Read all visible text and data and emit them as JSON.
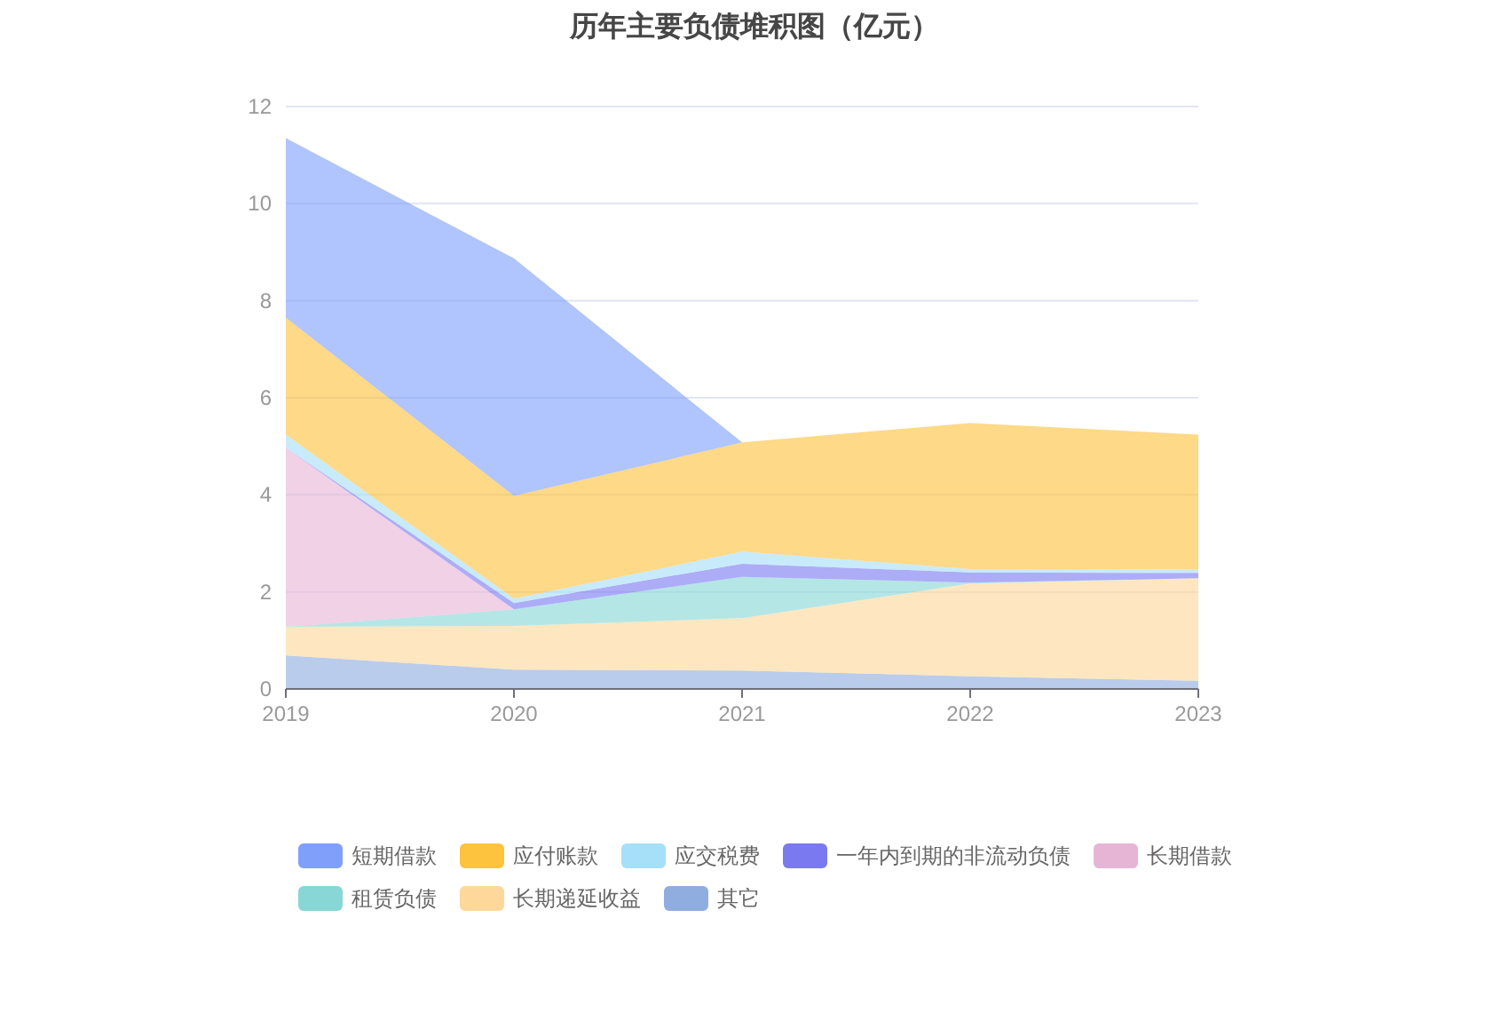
{
  "chart_data": {
    "type": "area",
    "title": "历年主要负债堆积图（亿元）",
    "stacked": true,
    "categories": [
      "2019",
      "2020",
      "2021",
      "2022",
      "2023"
    ],
    "ylim": [
      0,
      12
    ],
    "yticks": [
      0,
      2,
      4,
      6,
      8,
      10,
      12
    ],
    "grid": "y",
    "legend": "bottom",
    "series": [
      {
        "name": "其它",
        "color": "#8fadde",
        "values": [
          0.69,
          0.4,
          0.38,
          0.26,
          0.17
        ]
      },
      {
        "name": "长期递延收益",
        "color": "#fdd89a",
        "values": [
          0.59,
          0.9,
          1.08,
          1.91,
          2.11
        ]
      },
      {
        "name": "租赁负债",
        "color": "#88d6d6",
        "values": [
          0,
          0.34,
          0.85,
          0.02,
          0
        ]
      },
      {
        "name": "长期借款",
        "color": "#e6b5d6",
        "values": [
          3.69,
          0,
          0,
          0,
          0
        ]
      },
      {
        "name": "一年内到期的非流动负债",
        "color": "#7b79f0",
        "values": [
          0,
          0.13,
          0.27,
          0.21,
          0.11
        ]
      },
      {
        "name": "应交税费",
        "color": "#a6dff8",
        "values": [
          0.27,
          0.09,
          0.25,
          0.07,
          0.07
        ]
      },
      {
        "name": "应付账款",
        "color": "#fdc23e",
        "values": [
          2.41,
          2.12,
          2.25,
          3.01,
          2.78
        ]
      },
      {
        "name": "短期借款",
        "color": "#7f9ffb",
        "values": [
          3.7,
          4.89,
          0,
          0,
          0
        ]
      }
    ]
  }
}
